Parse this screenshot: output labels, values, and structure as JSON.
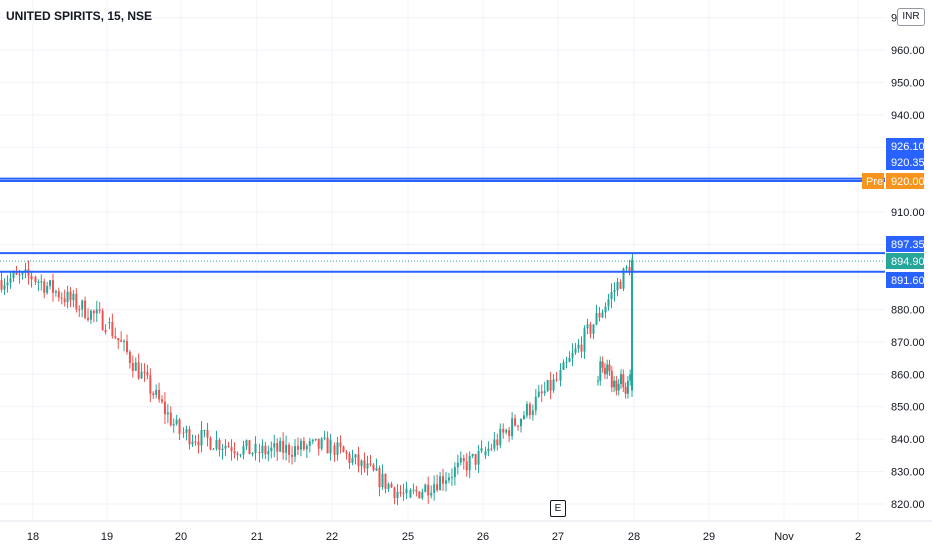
{
  "header": {
    "title": "UNITED SPIRITS, 15, NSE",
    "currency": "INR"
  },
  "colors": {
    "up": "#26a69a",
    "down": "#ef5350",
    "hline": "#2962ff",
    "premarket": "#f7941d",
    "grid": "#f0f3fa"
  },
  "chart_data": {
    "type": "candlestick",
    "title": "UNITED SPIRITS, 15, NSE",
    "ylim": [
      815,
      975
    ],
    "y_ticks": [
      "820.00",
      "830.00",
      "840.00",
      "850.00",
      "860.00",
      "870.00",
      "880.00",
      "890.00",
      "900.00",
      "910.00",
      "920.00",
      "930.00",
      "940.00",
      "950.00",
      "960.00",
      "970.00"
    ],
    "x_ticks": [
      "18",
      "19",
      "20",
      "21",
      "22",
      "25",
      "26",
      "27",
      "28",
      "29",
      "Nov",
      "2"
    ],
    "horizontal_lines": [
      {
        "value": 926.1,
        "label": "926.10",
        "drawn": false
      },
      {
        "value": 920.35,
        "label": "920.35",
        "drawn": true
      },
      {
        "value": 920.0,
        "label": "920.00",
        "prefix": "Pre",
        "drawn": false
      },
      {
        "value": 897.35,
        "label": "897.35",
        "drawn": true
      },
      {
        "value": 894.9,
        "label": "894.90",
        "drawn": false
      },
      {
        "value": 891.6,
        "label": "891.60",
        "drawn": true
      }
    ],
    "hline_919_drawn": 919.6,
    "last_price": 894.9,
    "premarket_label": "Pre",
    "earnings_marker": "E",
    "days": [
      {
        "label": "18",
        "o": 889,
        "c": 885,
        "lo": 885,
        "hi": 898,
        "close": 890
      },
      {
        "label": "19",
        "o": 890,
        "c": 876,
        "lo": 867,
        "hi": 890,
        "close": 876
      },
      {
        "label": "20",
        "o": 876,
        "c": 842,
        "lo": 838,
        "hi": 878,
        "close": 842
      },
      {
        "label": "21",
        "o": 842,
        "c": 836,
        "lo": 829,
        "hi": 851,
        "close": 836
      },
      {
        "label": "22",
        "o": 836,
        "c": 838,
        "lo": 833,
        "hi": 851,
        "close": 838
      },
      {
        "label": "25",
        "o": 838,
        "c": 822,
        "lo": 815,
        "hi": 840,
        "close": 822
      },
      {
        "label": "26",
        "o": 822,
        "c": 835,
        "lo": 819,
        "hi": 844,
        "close": 835
      },
      {
        "label": "27",
        "o": 835,
        "c": 858,
        "lo": 826,
        "hi": 864,
        "close": 858
      },
      {
        "label": "28",
        "o": 858,
        "c": 895,
        "lo": 853,
        "hi": 896,
        "close": 895
      }
    ]
  }
}
